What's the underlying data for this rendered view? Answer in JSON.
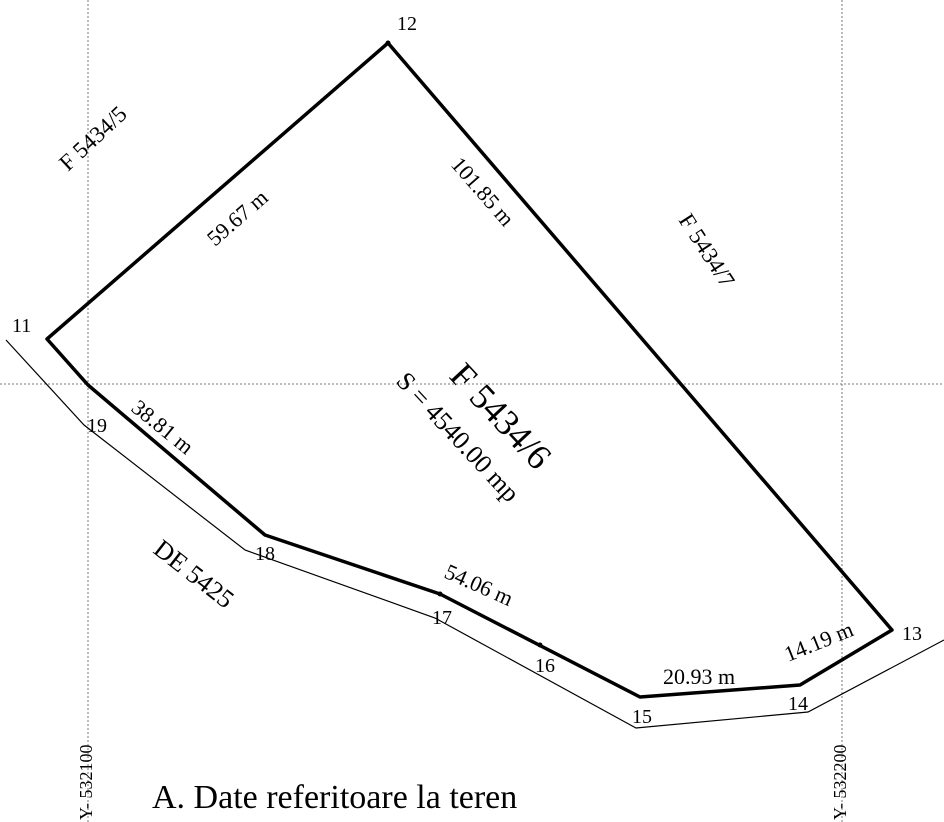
{
  "parcel": {
    "id": "F 5434/6",
    "area": "S = 4540.00 mp"
  },
  "neighbors": {
    "northwest": "F 5434/5",
    "northeast": "F 5434/7",
    "southwest": "DE 5425"
  },
  "points": {
    "p11": "11",
    "p12": "12",
    "p13": "13",
    "p14": "14",
    "p15": "15",
    "p16": "16",
    "p17": "17",
    "p18": "18",
    "p19": "19"
  },
  "distances": {
    "d11_12": "59.67 m",
    "d12_13": "101.85 m",
    "d13_14": "14.19 m",
    "d14_15": "20.93 m",
    "d15_18": "54.06 m",
    "d18_11": "38.81 m"
  },
  "grid": {
    "y1": "Y- 532100",
    "y2": "Y- 532200"
  },
  "caption": "A. Date referitoare la teren"
}
